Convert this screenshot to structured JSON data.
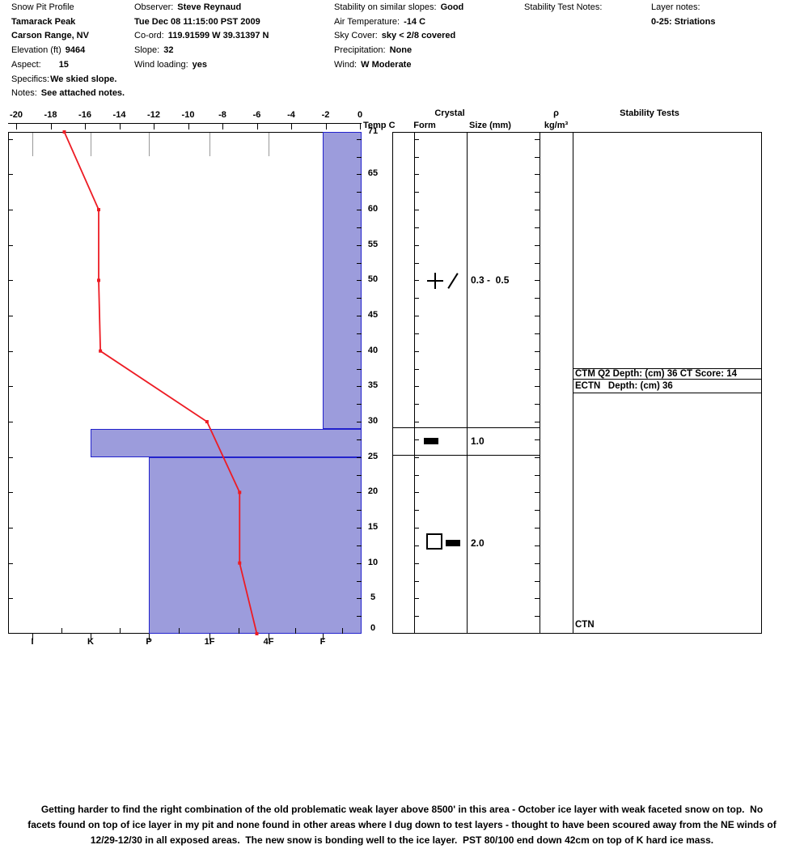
{
  "header": {
    "col1": {
      "title": "Snow Pit Profile",
      "location1": "Tamarack Peak",
      "location2": "Carson Range, NV",
      "elevation_label": "Elevation (ft)",
      "elevation_value": "9464",
      "aspect_label": "Aspect:",
      "aspect_value": "15",
      "specifics_label": "Specifics:",
      "specifics_value": "We skied slope.",
      "notes_label": "Notes:",
      "notes_value": "See attached notes."
    },
    "col2": {
      "observer_label": "Observer:",
      "observer_value": "Steve Reynaud",
      "datetime": "Tue Dec 08 11:15:00 PST 2009",
      "coord_label": "Co-ord:",
      "coord_value": "119.91599 W 39.31397 N",
      "slope_label": "Slope:",
      "slope_value": "32",
      "wind_loading_label": "Wind loading:",
      "wind_loading_value": "yes"
    },
    "col3": {
      "stability_label": "Stability on similar slopes:",
      "stability_value": "Good",
      "air_temp_label": "Air Temperature:",
      "air_temp_value": "-14 C",
      "sky_label": "Sky Cover:",
      "sky_value": "sky < 2/8 covered",
      "precip_label": "Precipitation:",
      "precip_value": "None",
      "wind_label": "Wind:",
      "wind_value": "W Moderate"
    },
    "col4": {
      "test_notes_label": "Stability Test Notes:"
    },
    "col5": {
      "layer_notes_label": "Layer notes:",
      "layer_notes_value": "0-25: Striations"
    }
  },
  "panel": {
    "temp_axis_label": "Temp C",
    "crystal_header": "Crystal",
    "form_header": "Form",
    "size_header": "Size (mm)",
    "density_header_symbol": "ρ",
    "density_header_unit": "kg/m³",
    "stability_header": "Stability Tests",
    "tests": {
      "ctm": "CTM Q2 Depth: (cm) 36 CT Score: 14",
      "ectn": "ECTN   Depth: (cm) 36",
      "ctn": "CTN"
    }
  },
  "chart_data": {
    "type": "line",
    "title": "Snow Pit Profile - Tamarack Peak",
    "x_axis": {
      "label": "Temp C",
      "min": -20,
      "max": 0,
      "tick_step": 2,
      "tick_labels": [
        "-20",
        "-18",
        "-16",
        "-14",
        "-12",
        "-10",
        "-8",
        "-6",
        "-4",
        "-2",
        "0"
      ]
    },
    "depth_axis": {
      "unit": "cm",
      "surface_depth_cm": 71,
      "tick_labels": [
        "71",
        "65",
        "60",
        "55",
        "50",
        "45",
        "40",
        "35",
        "30",
        "25",
        "20",
        "15",
        "10",
        "5",
        "0"
      ]
    },
    "hardness_axis": {
      "labels": [
        "I",
        "K",
        "P",
        "1F",
        "4F",
        "F"
      ]
    },
    "temperature_profile": [
      {
        "depth_cm": 71,
        "temp_c": -17.2
      },
      {
        "depth_cm": 60,
        "temp_c": -15.2
      },
      {
        "depth_cm": 50,
        "temp_c": -15.2
      },
      {
        "depth_cm": 40,
        "temp_c": -15.1
      },
      {
        "depth_cm": 30,
        "temp_c": -8.9
      },
      {
        "depth_cm": 20,
        "temp_c": -7.0
      },
      {
        "depth_cm": 10,
        "temp_c": -7.0
      },
      {
        "depth_cm": 0,
        "temp_c": -6.0
      }
    ],
    "hardness_layers": [
      {
        "top_cm": 71,
        "bottom_cm": 29,
        "hardness": "F"
      },
      {
        "top_cm": 29,
        "bottom_cm": 25,
        "hardness": "K"
      },
      {
        "top_cm": 25,
        "bottom_cm": 0,
        "hardness": "P"
      }
    ],
    "crystal_rows": [
      {
        "depth_cm": 50,
        "form_symbols": [
          "plus",
          "slash"
        ],
        "size_mm": "0.3 -  0.5"
      },
      {
        "depth_cm": 27,
        "form_symbols": [
          "ice-layer"
        ],
        "size_mm": "1.0",
        "layer_boundaries_cm": [
          29,
          25
        ]
      },
      {
        "depth_cm": 13,
        "form_symbols": [
          "facets",
          "ice-layer"
        ],
        "size_mm": "2.0"
      }
    ],
    "colors": {
      "temp_line": "#ed1c24",
      "bar_fill": "#9c9cdc",
      "bar_border": "#2222cc"
    }
  },
  "footer_notes": {
    "lines": [
      "Getting harder to find the right combination of the old problematic weak layer above 8500' in this area - October ice layer with weak faceted snow on top.  No",
      "facets found on top of ice layer in my pit and none found in other areas where I dug down to test layers - thought to have been scoured away from the NE winds of",
      "12/29-12/30 in all exposed areas.  The new snow is bonding well to the ice layer.  PST 80/100 end down 42cm on top of K hard ice mass."
    ]
  }
}
